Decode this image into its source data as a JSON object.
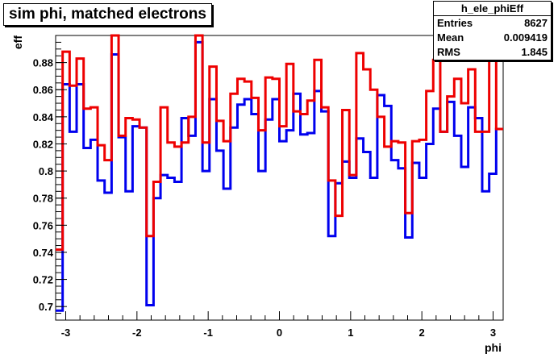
{
  "title": "sim phi, matched electrons",
  "stats": {
    "name": "h_ele_phiEff",
    "rows": [
      {
        "label": "Entries",
        "value": "8627"
      },
      {
        "label": "Mean",
        "value": "0.009419"
      },
      {
        "label": "RMS",
        "value": "1.845"
      }
    ]
  },
  "chart_data": {
    "type": "line",
    "title": "sim phi, matched electrons",
    "xlabel": "phi",
    "ylabel": "eff",
    "xlim": [
      -3.1416,
      3.1416
    ],
    "ylim": [
      0.69,
      0.9
    ],
    "x_ticks": [
      -3,
      -2,
      -1,
      0,
      1,
      2,
      3
    ],
    "x_tick_labels": [
      "-3",
      "-2",
      "-1",
      "0",
      "1",
      "2",
      "3"
    ],
    "y_ticks": [
      0.7,
      0.72,
      0.74,
      0.76,
      0.78,
      0.8,
      0.82,
      0.84,
      0.86,
      0.88
    ],
    "y_tick_labels": [
      "0.7",
      "0.72",
      "0.74",
      "0.76",
      "0.78",
      "0.8",
      "0.82",
      "0.84",
      "0.86",
      "0.88"
    ],
    "grid": false,
    "bins": 64,
    "series": [
      {
        "color": "#0000ee",
        "style": "step",
        "values": [
          0.697,
          0.864,
          0.829,
          0.864,
          0.817,
          0.823,
          0.793,
          0.784,
          0.886,
          0.825,
          0.785,
          0.833,
          0.832,
          0.701,
          0.78,
          0.797,
          0.795,
          0.792,
          0.839,
          0.826,
          0.895,
          0.8,
          0.853,
          0.815,
          0.787,
          0.832,
          0.849,
          0.853,
          0.842,
          0.8,
          0.838,
          0.853,
          0.822,
          0.83,
          0.857,
          0.827,
          0.828,
          0.859,
          0.844,
          0.752,
          0.791,
          0.807,
          0.795,
          0.824,
          0.814,
          0.795,
          0.856,
          0.848,
          0.808,
          0.802,
          0.751,
          0.806,
          0.795,
          0.82,
          0.846,
          0.829,
          0.851,
          0.826,
          0.803,
          0.847,
          0.839,
          0.785,
          0.798,
          0.831
        ]
      },
      {
        "color": "#ee0000",
        "style": "step",
        "values": [
          0.742,
          0.888,
          0.863,
          0.883,
          0.846,
          0.847,
          0.819,
          0.808,
          0.905,
          0.826,
          0.839,
          0.838,
          0.832,
          0.752,
          0.792,
          0.847,
          0.821,
          0.818,
          0.821,
          0.84,
          0.905,
          0.821,
          0.877,
          0.837,
          0.822,
          0.857,
          0.868,
          0.866,
          0.854,
          0.83,
          0.869,
          0.868,
          0.833,
          0.879,
          0.844,
          0.842,
          0.852,
          0.882,
          0.847,
          0.793,
          0.767,
          0.845,
          0.797,
          0.887,
          0.875,
          0.86,
          0.84,
          0.818,
          0.822,
          0.821,
          0.769,
          0.822,
          0.823,
          0.859,
          0.882,
          0.829,
          0.855,
          0.868,
          0.85,
          0.875,
          0.829,
          0.829,
          0.898,
          0.831
        ]
      }
    ]
  }
}
